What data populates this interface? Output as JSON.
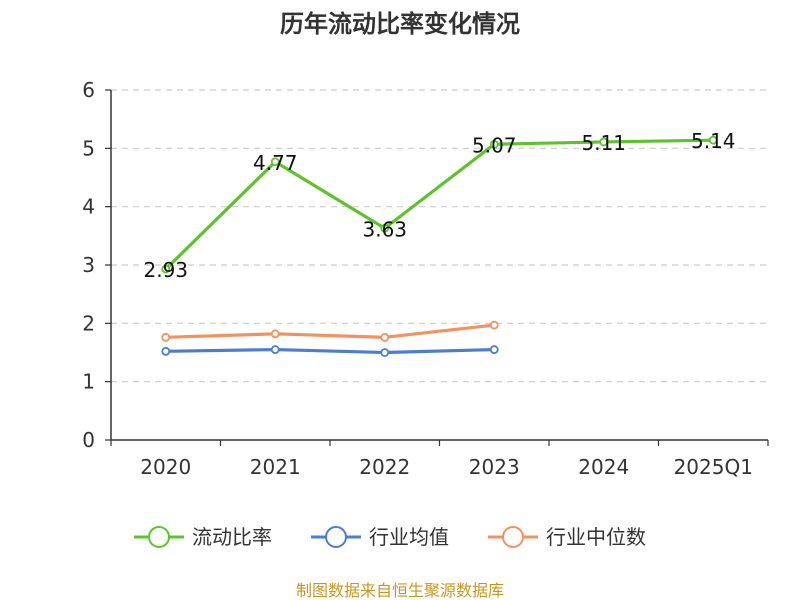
{
  "chart_data": {
    "type": "line",
    "title": "历年流动比率变化情况",
    "xlabel": "",
    "ylabel": "",
    "categories": [
      "2020",
      "2021",
      "2022",
      "2023",
      "2024",
      "2025Q1"
    ],
    "ylim": [
      0,
      6
    ],
    "yticks": [
      "0",
      "1",
      "2",
      "3",
      "4",
      "5",
      "6"
    ],
    "grid": true,
    "legend_position": "bottom",
    "series": [
      {
        "name": "流动比率",
        "color": "#5cc42a",
        "values": [
          2.93,
          4.77,
          3.63,
          5.07,
          5.11,
          5.14
        ],
        "labels": [
          "2.93",
          "4.77",
          "3.63",
          "5.07",
          "5.11",
          "5.14"
        ]
      },
      {
        "name": "行业均值",
        "color": "#4a7ed6",
        "values": [
          1.52,
          1.55,
          1.5,
          1.55,
          null,
          null
        ]
      },
      {
        "name": "行业中位数",
        "color": "#f39161",
        "values": [
          1.76,
          1.82,
          1.76,
          1.97,
          null,
          null
        ]
      }
    ]
  },
  "source_text": "制图数据来自恒生聚源数据库"
}
